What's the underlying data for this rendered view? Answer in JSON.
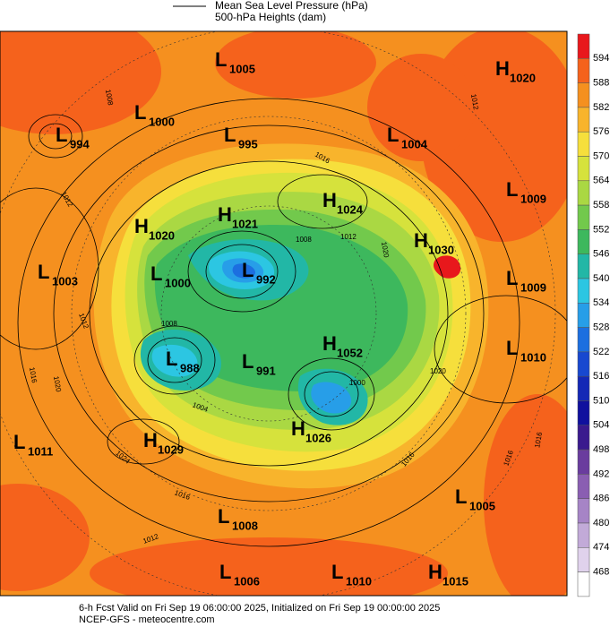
{
  "legend": {
    "items": [
      "Mean Sea Level Pressure (hPa)",
      "500-hPa Heights (dam)"
    ]
  },
  "colorbar": {
    "labels": [
      594,
      588,
      582,
      576,
      570,
      564,
      558,
      552,
      546,
      540,
      534,
      528,
      522,
      516,
      510,
      504,
      498,
      492,
      486,
      480,
      474,
      468
    ],
    "colors": [
      "#e8181c",
      "#f5621c",
      "#f5901f",
      "#f8b42c",
      "#f6df3c",
      "#d6e23c",
      "#aad843",
      "#72c94c",
      "#3db85d",
      "#22b7a6",
      "#2cc6e2",
      "#279ee8",
      "#1c6fe0",
      "#1848d0",
      "#1428b6",
      "#10109e",
      "#3a1a8e",
      "#6a3c9e",
      "#8a5eb2",
      "#a684c6",
      "#c2aad8",
      "#e0d2ec",
      "#ffffff"
    ]
  },
  "centers": [
    {
      "letter": "L",
      "value": "1005"
    },
    {
      "letter": "H",
      "value": "1020"
    },
    {
      "letter": "L",
      "value": "1000"
    },
    {
      "letter": "L",
      "value": "994"
    },
    {
      "letter": "L",
      "value": "995"
    },
    {
      "letter": "L",
      "value": "1004"
    },
    {
      "letter": "L",
      "value": "1009"
    },
    {
      "letter": "H",
      "value": "1024"
    },
    {
      "letter": "H",
      "value": "1021"
    },
    {
      "letter": "H",
      "value": "1020"
    },
    {
      "letter": "H",
      "value": "1030"
    },
    {
      "letter": "L",
      "value": "1003"
    },
    {
      "letter": "L",
      "value": "1000"
    },
    {
      "letter": "L",
      "value": "992"
    },
    {
      "letter": "L",
      "value": "1009"
    },
    {
      "letter": "H",
      "value": "1052"
    },
    {
      "letter": "L",
      "value": "1010"
    },
    {
      "letter": "L",
      "value": "988"
    },
    {
      "letter": "L",
      "value": "991"
    },
    {
      "letter": "H",
      "value": "1026"
    },
    {
      "letter": "L",
      "value": "1011"
    },
    {
      "letter": "H",
      "value": "1029"
    },
    {
      "letter": "L",
      "value": "1005"
    },
    {
      "letter": "L",
      "value": "1008"
    },
    {
      "letter": "L",
      "value": "1006"
    },
    {
      "letter": "L",
      "value": "1010"
    },
    {
      "letter": "H",
      "value": "1015"
    }
  ],
  "contour_labels": [
    "1008",
    "1012",
    "1016",
    "1012",
    "1008",
    "1020",
    "1012",
    "1012",
    "1016",
    "1020",
    "1024",
    "1016",
    "1012",
    "1016",
    "1020",
    "1000",
    "1004",
    "1008",
    "1016",
    "1016"
  ],
  "footer": {
    "line1": "6-h Fcst Valid on Fri Sep 19 06:00:00 2025, Initialized on Fri Sep 19 00:00:00 2025",
    "line2": "NCEP-GFS  - meteocentre.com"
  }
}
